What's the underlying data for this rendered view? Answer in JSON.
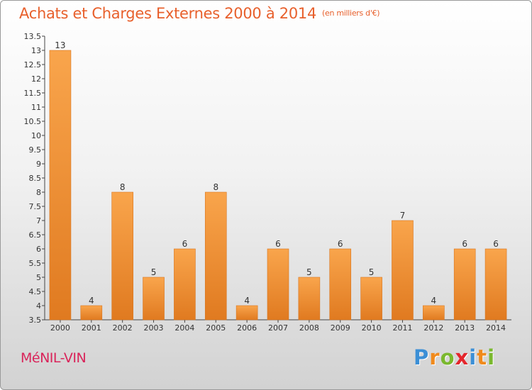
{
  "header": {
    "title": "Achats et Charges Externes 2000 à 2014",
    "subtitle": "(en milliers d'€)"
  },
  "footer": {
    "commune": "MéNIL-VIN",
    "logo_letters": [
      "P",
      "r",
      "o",
      "x",
      "i",
      "t",
      "i"
    ],
    "logo_colors": [
      "#3b8fd6",
      "#f08a1c",
      "#7ab82e",
      "#e4262c",
      "#3b8fd6",
      "#f08a1c",
      "#7ab82e"
    ]
  },
  "colors": {
    "bar_light": "#f9a54c",
    "bar_dark": "#e07a20",
    "title": "#e8602c",
    "commune": "#d9245a"
  },
  "chart_data": {
    "type": "bar",
    "title": "Achats et Charges Externes 2000 à 2014",
    "subtitle": "(en milliers d'€)",
    "categories": [
      "2000",
      "2001",
      "2002",
      "2003",
      "2004",
      "2005",
      "2006",
      "2007",
      "2008",
      "2009",
      "2010",
      "2011",
      "2012",
      "2013",
      "2014"
    ],
    "values": [
      13,
      4,
      8,
      5,
      6,
      8,
      4,
      6,
      5,
      6,
      5,
      7,
      4,
      6,
      6
    ],
    "ylim": [
      3.5,
      13.5
    ],
    "yticks": [
      "3.5",
      "4",
      "4.5",
      "5",
      "5.5",
      "6",
      "6.5",
      "7",
      "7.5",
      "8",
      "8.5",
      "9",
      "9.5",
      "10",
      "10.5",
      "11",
      "11.5",
      "12",
      "12.5",
      "13",
      "13.5"
    ],
    "grid": false,
    "legend": "none"
  }
}
